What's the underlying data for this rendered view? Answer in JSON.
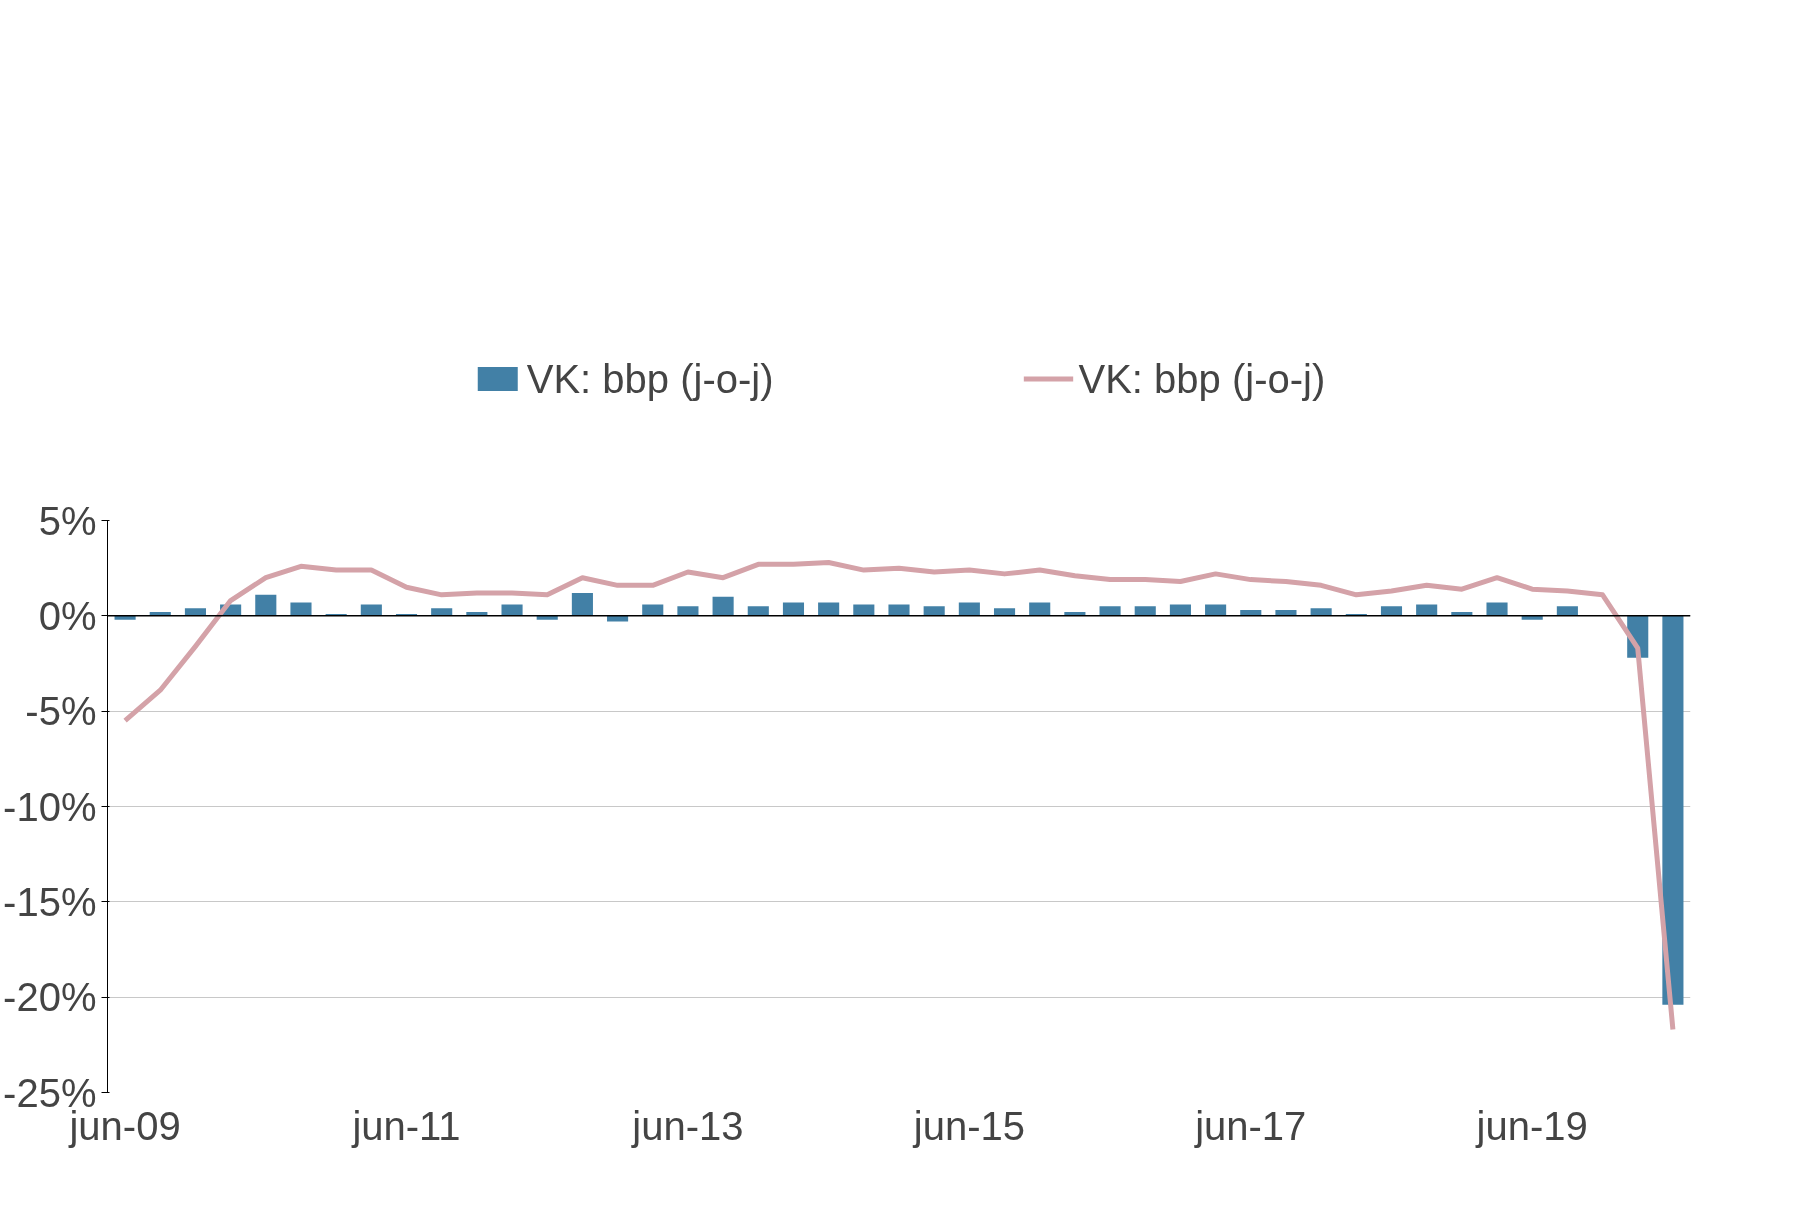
{
  "chart_data": {
    "type": "bar",
    "categories": [
      "jun-09",
      null,
      null,
      null,
      null,
      null,
      null,
      null,
      "jun-11",
      null,
      null,
      null,
      null,
      null,
      null,
      null,
      "jun-13",
      null,
      null,
      null,
      null,
      null,
      null,
      null,
      "jun-15",
      null,
      null,
      null,
      null,
      null,
      null,
      null,
      "jun-17",
      null,
      null,
      null,
      null,
      null,
      null,
      null,
      "jun-19",
      null,
      null,
      null,
      null
    ],
    "series": [
      {
        "name": "VK: bbp (j-o-j)",
        "color": "#4280a6",
        "values": [
          -0.2,
          0.2,
          0.4,
          0.6,
          1.1,
          0.7,
          0.1,
          0.6,
          0.1,
          0.4,
          0.2,
          0.6,
          -0.2,
          1.2,
          -0.3,
          0.6,
          0.5,
          1.0,
          0.5,
          0.7,
          0.7,
          0.6,
          0.6,
          0.5,
          0.7,
          0.4,
          0.7,
          0.2,
          0.5,
          0.5,
          0.6,
          0.6,
          0.3,
          0.3,
          0.4,
          0.1,
          0.5,
          0.6,
          0.2,
          0.7,
          -0.2,
          0.5,
          0.0,
          -2.2,
          -20.4
        ]
      },
      {
        "name": "VK: bbp (j-o-j)",
        "type": "line",
        "color": "#d4a2a8",
        "values": [
          -5.5,
          -3.9,
          -1.6,
          0.8,
          2.0,
          2.6,
          2.4,
          2.4,
          1.5,
          1.1,
          1.2,
          1.2,
          1.1,
          2.0,
          1.6,
          1.6,
          2.3,
          2.0,
          2.7,
          2.7,
          2.8,
          2.4,
          2.5,
          2.3,
          2.4,
          2.2,
          2.4,
          2.1,
          1.9,
          1.9,
          1.8,
          2.2,
          1.9,
          1.8,
          1.6,
          1.1,
          1.3,
          1.6,
          1.4,
          2.0,
          1.4,
          1.3,
          1.1,
          -1.7,
          -21.7
        ]
      }
    ],
    "ylim": [
      -25,
      5
    ],
    "yticks": [
      {
        "value": -25,
        "label": "-25%"
      },
      {
        "value": -20,
        "label": "-20%"
      },
      {
        "value": -15,
        "label": "-15%"
      },
      {
        "value": -10,
        "label": "-10%"
      },
      {
        "value": -5,
        "label": "-5%"
      },
      {
        "value": 0,
        "label": "0%"
      },
      {
        "value": 5,
        "label": "5%"
      }
    ],
    "grid": "y",
    "legend": "top",
    "ref_lines": [
      {
        "axis": "y",
        "value": 0,
        "color": "#000000"
      }
    ]
  }
}
